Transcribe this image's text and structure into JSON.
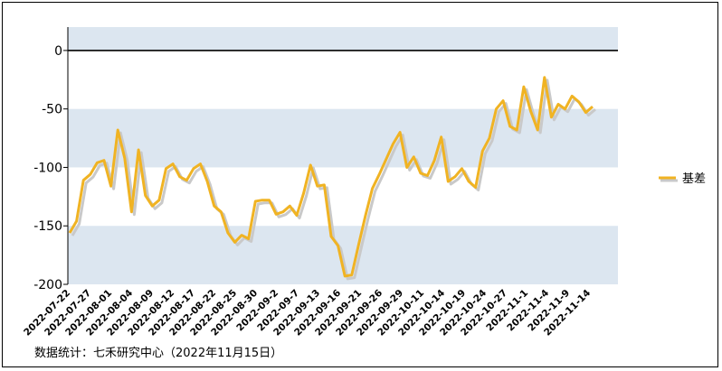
{
  "chart_data": {
    "type": "line",
    "ylim": [
      -200,
      20
    ],
    "yticks": [
      0,
      -50,
      -100,
      -150,
      -200
    ],
    "x_tick_labels": [
      "2022-07-22",
      "2022-07-27",
      "2022-08-01",
      "2022-08-04",
      "2022-08-09",
      "2022-08-12",
      "2022-08-17",
      "2022-08-22",
      "2022-08-25",
      "2022-08-30",
      "2022-09-2",
      "2022-09-7",
      "2022-09-13",
      "2022-09-16",
      "2022-09-21",
      "2022-09-26",
      "2022-09-29",
      "2022-10-11",
      "2022-10-14",
      "2022-10-19",
      "2022-10-24",
      "2022-10-27",
      "2022-11-1",
      "2022-11-4",
      "2022-11-9",
      "2022-11-14"
    ],
    "series": [
      {
        "name": "基差",
        "color": "#f0b323",
        "values": [
          -156,
          -146,
          -111,
          -106,
          -96,
          -94,
          -116,
          -68,
          -92,
          -138,
          -85,
          -124,
          -133,
          -128,
          -101,
          -97,
          -108,
          -111,
          -101,
          -97,
          -112,
          -133,
          -138,
          -156,
          -164,
          -158,
          -161,
          -129,
          -128,
          -128,
          -140,
          -138,
          -133,
          -141,
          -122,
          -98,
          -116,
          -115,
          -159,
          -167,
          -193,
          -192,
          -166,
          -141,
          -118,
          -106,
          -93,
          -80,
          -70,
          -100,
          -91,
          -105,
          -107,
          -94,
          -74,
          -112,
          -108,
          -101,
          -112,
          -117,
          -86,
          -75,
          -50,
          -43,
          -65,
          -68,
          -31,
          -52,
          -68,
          -23,
          -57,
          -46,
          -50,
          -39,
          -44,
          -53,
          -48
        ]
      }
    ],
    "bands": [
      [
        0,
        20
      ],
      [
        -100,
        -50
      ],
      [
        -200,
        -150
      ]
    ],
    "band_color": "#dce6f0",
    "legend_position": "right"
  },
  "source_text": "数据统计：七禾研究中心（2022年11月15日）"
}
